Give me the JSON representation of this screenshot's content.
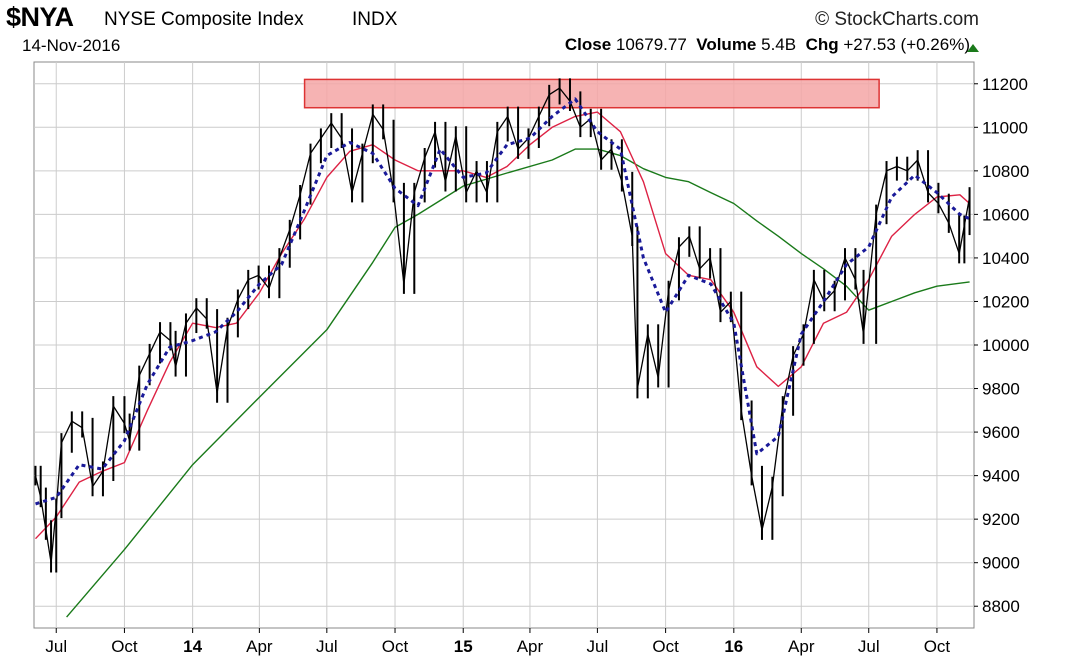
{
  "header": {
    "symbol": "$NYA",
    "name": "NYSE Composite Index",
    "exchange": "INDX",
    "brand": "© StockCharts.com",
    "date": "14-Nov-2016",
    "close_label": "Close",
    "close_value": "10679.77",
    "volume_label": "Volume",
    "volume_value": "5.4B",
    "chg_label": "Chg",
    "chg_value": "+27.53 (+0.26%)"
  },
  "colors": {
    "price": "#000000",
    "ma_fast": "#1a1a99",
    "ma_mid": "#dd2244",
    "ma_slow": "#1a7a1a",
    "resistance_fill": "#f4a6a6",
    "resistance_stroke": "#dd3333",
    "grid": "#cccccc",
    "up_arrow": "#1a7a1a"
  },
  "chart_data": {
    "type": "line",
    "ylim": [
      8700,
      11300
    ],
    "y_ticks": [
      8800,
      9000,
      9200,
      9400,
      9600,
      9800,
      10000,
      10200,
      10400,
      10600,
      10800,
      11000,
      11200
    ],
    "x_range": [
      "2013-06-01",
      "2016-11-20"
    ],
    "x_ticks": [
      {
        "date": "2013-07-01",
        "label": "Jul",
        "bold": false
      },
      {
        "date": "2013-10-01",
        "label": "Oct",
        "bold": false
      },
      {
        "date": "2014-01-01",
        "label": "14",
        "bold": true
      },
      {
        "date": "2014-04-01",
        "label": "Apr",
        "bold": false
      },
      {
        "date": "2014-07-01",
        "label": "Jul",
        "bold": false
      },
      {
        "date": "2014-10-01",
        "label": "Oct",
        "bold": false
      },
      {
        "date": "2015-01-01",
        "label": "15",
        "bold": true
      },
      {
        "date": "2015-04-01",
        "label": "Apr",
        "bold": false
      },
      {
        "date": "2015-07-01",
        "label": "Jul",
        "bold": false
      },
      {
        "date": "2015-10-01",
        "label": "Oct",
        "bold": false
      },
      {
        "date": "2016-01-01",
        "label": "16",
        "bold": true
      },
      {
        "date": "2016-04-01",
        "label": "Apr",
        "bold": false
      },
      {
        "date": "2016-07-01",
        "label": "Jul",
        "bold": false
      },
      {
        "date": "2016-10-01",
        "label": "Oct",
        "bold": false
      }
    ],
    "resistance_zone": {
      "start": "2014-06-01",
      "end": "2016-07-15",
      "low": 11090,
      "high": 11220
    },
    "series": [
      {
        "role": "price",
        "points": [
          [
            "2013-06-03",
            9400
          ],
          [
            "2013-06-10",
            9300
          ],
          [
            "2013-06-17",
            9150
          ],
          [
            "2013-06-24",
            9000
          ],
          [
            "2013-07-01",
            9250
          ],
          [
            "2013-07-08",
            9550
          ],
          [
            "2013-07-22",
            9650
          ],
          [
            "2013-08-05",
            9620
          ],
          [
            "2013-08-19",
            9350
          ],
          [
            "2013-09-02",
            9420
          ],
          [
            "2013-09-16",
            9720
          ],
          [
            "2013-10-01",
            9640
          ],
          [
            "2013-10-08",
            9560
          ],
          [
            "2013-10-21",
            9860
          ],
          [
            "2013-11-04",
            9960
          ],
          [
            "2013-11-18",
            10060
          ],
          [
            "2013-12-02",
            10020
          ],
          [
            "2013-12-09",
            9900
          ],
          [
            "2013-12-23",
            10100
          ],
          [
            "2014-01-06",
            10170
          ],
          [
            "2014-01-20",
            10120
          ],
          [
            "2014-02-03",
            9780
          ],
          [
            "2014-02-17",
            10080
          ],
          [
            "2014-03-03",
            10210
          ],
          [
            "2014-03-17",
            10300
          ],
          [
            "2014-03-31",
            10320
          ],
          [
            "2014-04-14",
            10260
          ],
          [
            "2014-04-28",
            10400
          ],
          [
            "2014-05-12",
            10530
          ],
          [
            "2014-05-26",
            10690
          ],
          [
            "2014-06-09",
            10880
          ],
          [
            "2014-06-23",
            10950
          ],
          [
            "2014-07-07",
            11020
          ],
          [
            "2014-07-21",
            10950
          ],
          [
            "2014-08-04",
            10700
          ],
          [
            "2014-08-18",
            10880
          ],
          [
            "2014-09-01",
            11060
          ],
          [
            "2014-09-15",
            10990
          ],
          [
            "2014-09-29",
            10700
          ],
          [
            "2014-10-13",
            10280
          ],
          [
            "2014-10-27",
            10700
          ],
          [
            "2014-11-10",
            10860
          ],
          [
            "2014-11-24",
            10980
          ],
          [
            "2014-12-08",
            10750
          ],
          [
            "2014-12-22",
            10960
          ],
          [
            "2015-01-05",
            10700
          ],
          [
            "2015-01-19",
            10800
          ],
          [
            "2015-02-02",
            10700
          ],
          [
            "2015-02-16",
            10980
          ],
          [
            "2015-03-02",
            11050
          ],
          [
            "2015-03-16",
            10900
          ],
          [
            "2015-03-30",
            10950
          ],
          [
            "2015-04-13",
            11050
          ],
          [
            "2015-04-27",
            11150
          ],
          [
            "2015-05-11",
            11180
          ],
          [
            "2015-05-25",
            11120
          ],
          [
            "2015-06-08",
            11000
          ],
          [
            "2015-06-22",
            11040
          ],
          [
            "2015-07-06",
            10850
          ],
          [
            "2015-07-20",
            10900
          ],
          [
            "2015-08-03",
            10750
          ],
          [
            "2015-08-17",
            10500
          ],
          [
            "2015-08-24",
            9800
          ],
          [
            "2015-09-07",
            10050
          ],
          [
            "2015-09-21",
            9850
          ],
          [
            "2015-10-05",
            10250
          ],
          [
            "2015-10-19",
            10450
          ],
          [
            "2015-11-02",
            10500
          ],
          [
            "2015-11-16",
            10350
          ],
          [
            "2015-11-30",
            10400
          ],
          [
            "2015-12-14",
            10150
          ],
          [
            "2015-12-28",
            10200
          ],
          [
            "2016-01-11",
            9700
          ],
          [
            "2016-01-25",
            9400
          ],
          [
            "2016-02-08",
            9150
          ],
          [
            "2016-02-22",
            9350
          ],
          [
            "2016-03-07",
            9720
          ],
          [
            "2016-03-21",
            9950
          ],
          [
            "2016-04-04",
            10050
          ],
          [
            "2016-04-18",
            10300
          ],
          [
            "2016-05-02",
            10200
          ],
          [
            "2016-05-16",
            10250
          ],
          [
            "2016-05-30",
            10400
          ],
          [
            "2016-06-13",
            10300
          ],
          [
            "2016-06-24",
            10050
          ],
          [
            "2016-07-11",
            10600
          ],
          [
            "2016-07-25",
            10800
          ],
          [
            "2016-08-08",
            10820
          ],
          [
            "2016-08-22",
            10800
          ],
          [
            "2016-09-05",
            10850
          ],
          [
            "2016-09-19",
            10700
          ],
          [
            "2016-10-03",
            10650
          ],
          [
            "2016-10-17",
            10560
          ],
          [
            "2016-10-31",
            10420
          ],
          [
            "2016-11-07",
            10550
          ],
          [
            "2016-11-14",
            10680
          ]
        ]
      },
      {
        "role": "ma_fast",
        "points": [
          [
            "2013-06-03",
            9270
          ],
          [
            "2013-07-01",
            9300
          ],
          [
            "2013-08-01",
            9450
          ],
          [
            "2013-09-01",
            9430
          ],
          [
            "2013-10-01",
            9560
          ],
          [
            "2013-11-01",
            9820
          ],
          [
            "2013-12-01",
            9990
          ],
          [
            "2014-01-01",
            10020
          ],
          [
            "2014-02-01",
            10060
          ],
          [
            "2014-03-01",
            10150
          ],
          [
            "2014-04-01",
            10280
          ],
          [
            "2014-05-01",
            10370
          ],
          [
            "2014-06-01",
            10620
          ],
          [
            "2014-07-01",
            10870
          ],
          [
            "2014-08-01",
            10930
          ],
          [
            "2014-09-01",
            10880
          ],
          [
            "2014-10-01",
            10720
          ],
          [
            "2014-11-01",
            10640
          ],
          [
            "2014-12-01",
            10900
          ],
          [
            "2015-01-01",
            10770
          ],
          [
            "2015-02-01",
            10790
          ],
          [
            "2015-03-01",
            10920
          ],
          [
            "2015-04-01",
            10950
          ],
          [
            "2015-05-01",
            11050
          ],
          [
            "2015-06-01",
            11130
          ],
          [
            "2015-07-01",
            10980
          ],
          [
            "2015-08-01",
            10900
          ],
          [
            "2015-09-01",
            10400
          ],
          [
            "2015-10-01",
            10150
          ],
          [
            "2015-11-01",
            10320
          ],
          [
            "2015-12-01",
            10280
          ],
          [
            "2016-01-01",
            10100
          ],
          [
            "2016-02-01",
            9500
          ],
          [
            "2016-03-01",
            9580
          ],
          [
            "2016-04-01",
            10050
          ],
          [
            "2016-05-01",
            10200
          ],
          [
            "2016-06-01",
            10370
          ],
          [
            "2016-07-01",
            10450
          ],
          [
            "2016-08-01",
            10680
          ],
          [
            "2016-09-01",
            10780
          ],
          [
            "2016-10-01",
            10700
          ],
          [
            "2016-11-01",
            10600
          ],
          [
            "2016-11-14",
            10580
          ]
        ]
      },
      {
        "role": "ma_mid",
        "points": [
          [
            "2013-06-03",
            9110
          ],
          [
            "2013-07-01",
            9210
          ],
          [
            "2013-08-01",
            9370
          ],
          [
            "2013-09-01",
            9420
          ],
          [
            "2013-10-01",
            9460
          ],
          [
            "2013-11-01",
            9700
          ],
          [
            "2013-12-01",
            9920
          ],
          [
            "2014-01-01",
            10100
          ],
          [
            "2014-02-01",
            10080
          ],
          [
            "2014-03-01",
            10100
          ],
          [
            "2014-04-01",
            10240
          ],
          [
            "2014-05-01",
            10420
          ],
          [
            "2014-06-01",
            10580
          ],
          [
            "2014-07-01",
            10770
          ],
          [
            "2014-08-01",
            10890
          ],
          [
            "2014-09-01",
            10920
          ],
          [
            "2014-10-01",
            10850
          ],
          [
            "2014-11-01",
            10800
          ],
          [
            "2014-12-01",
            10800
          ],
          [
            "2015-01-01",
            10800
          ],
          [
            "2015-02-01",
            10770
          ],
          [
            "2015-03-01",
            10820
          ],
          [
            "2015-04-01",
            10920
          ],
          [
            "2015-05-01",
            11000
          ],
          [
            "2015-06-01",
            11050
          ],
          [
            "2015-07-01",
            11070
          ],
          [
            "2015-08-01",
            10980
          ],
          [
            "2015-09-01",
            10750
          ],
          [
            "2015-10-01",
            10420
          ],
          [
            "2015-11-01",
            10320
          ],
          [
            "2015-12-01",
            10300
          ],
          [
            "2016-01-01",
            10150
          ],
          [
            "2016-02-01",
            9900
          ],
          [
            "2016-03-01",
            9810
          ],
          [
            "2016-04-01",
            9900
          ],
          [
            "2016-05-01",
            10100
          ],
          [
            "2016-06-01",
            10150
          ],
          [
            "2016-07-01",
            10300
          ],
          [
            "2016-08-01",
            10500
          ],
          [
            "2016-09-01",
            10600
          ],
          [
            "2016-10-01",
            10680
          ],
          [
            "2016-11-01",
            10690
          ],
          [
            "2016-11-14",
            10650
          ]
        ]
      },
      {
        "role": "ma_slow",
        "points": [
          [
            "2013-07-15",
            8750
          ],
          [
            "2013-10-01",
            9060
          ],
          [
            "2014-01-01",
            9450
          ],
          [
            "2014-04-01",
            9760
          ],
          [
            "2014-07-01",
            10070
          ],
          [
            "2014-09-01",
            10380
          ],
          [
            "2014-10-01",
            10540
          ],
          [
            "2014-11-01",
            10600
          ],
          [
            "2015-01-01",
            10730
          ],
          [
            "2015-03-01",
            10790
          ],
          [
            "2015-05-01",
            10850
          ],
          [
            "2015-06-01",
            10900
          ],
          [
            "2015-07-01",
            10900
          ],
          [
            "2015-08-01",
            10870
          ],
          [
            "2015-09-01",
            10810
          ],
          [
            "2015-10-01",
            10770
          ],
          [
            "2015-11-01",
            10750
          ],
          [
            "2015-12-01",
            10700
          ],
          [
            "2016-01-01",
            10650
          ],
          [
            "2016-02-01",
            10570
          ],
          [
            "2016-03-01",
            10500
          ],
          [
            "2016-04-01",
            10420
          ],
          [
            "2016-05-01",
            10350
          ],
          [
            "2016-06-01",
            10270
          ],
          [
            "2016-07-01",
            10160
          ],
          [
            "2016-08-01",
            10200
          ],
          [
            "2016-09-01",
            10240
          ],
          [
            "2016-10-01",
            10270
          ],
          [
            "2016-11-14",
            10290
          ]
        ]
      }
    ]
  }
}
